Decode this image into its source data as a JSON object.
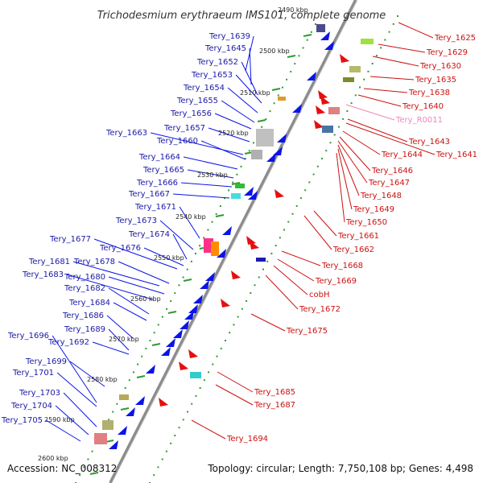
{
  "title": "Trichodesmium erythraeum IMS101, complete genome",
  "accession": "Accession: NC_008312",
  "summary": "Topology: circular; Length: 7,750,108 bp; Genes: 4,498",
  "colors": {
    "backbone": "#8c8c8c",
    "reverse_strand": "#0a14e6",
    "forward_strand": "#e60f0f",
    "left_labels": "#1a1aa6",
    "right_labels": "#cc1111",
    "rna_label": "#ee88bb",
    "dots": "#2f9a2f"
  },
  "scale_labels": [
    "2590 kbp",
    "2580 kbp",
    "2570 kbp",
    "2560 kbp",
    "2550 kbp",
    "2540 kbp",
    "2530 kbp",
    "2520 kbp",
    "2510 kbp",
    "2500 kbp",
    "2490 kbp",
    "2600 kbp"
  ],
  "left_genes": [
    "Tery_1639",
    "Tery_1645",
    "Tery_1652",
    "Tery_1653",
    "Tery_1654",
    "Tery_1655",
    "Tery_1656",
    "Tery_1657",
    "Tery_1663",
    "Tery_1660",
    "Tery_1664",
    "Tery_1665",
    "Tery_1666",
    "Tery_1667",
    "Tery_1671",
    "Tery_1673",
    "Tery_1674",
    "Tery_1677",
    "Tery_1676",
    "Tery_1681",
    "Tery_1678",
    "Tery_1683",
    "Tery_1680",
    "Tery_1682",
    "Tery_1684",
    "Tery_1686",
    "Tery_1689",
    "Tery_1696",
    "Tery_1692",
    "Tery_1699",
    "Tery_1701",
    "Tery_1703",
    "Tery_1704",
    "Tery_1705"
  ],
  "right_genes": [
    "Tery_1625",
    "Tery_1629",
    "Tery_1630",
    "Tery_1635",
    "Tery_1638",
    "Tery_1640",
    "Tery_R0011",
    "Tery_1643",
    "Tery_1641",
    "Tery_1644",
    "Tery_1646",
    "Tery_1647",
    "Tery_1648",
    "Tery_1649",
    "Tery_1650",
    "Tery_1661",
    "Tery_1662",
    "Tery_1668",
    "Tery_1669",
    "cobH",
    "Tery_1672",
    "Tery_1675",
    "Tery_1685",
    "Tery_1687",
    "Tery_1694"
  ]
}
